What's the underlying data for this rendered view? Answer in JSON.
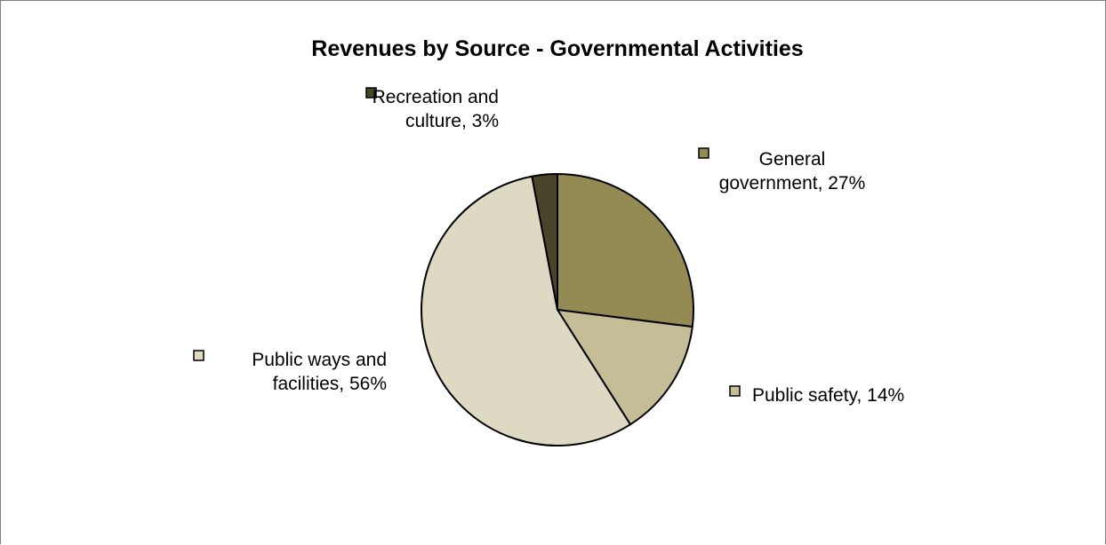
{
  "chart_data": {
    "type": "pie",
    "title": "Revenues by Source - Governmental Activities",
    "slices": [
      {
        "name": "General government",
        "label_lines": [
          "General",
          "government, 27%"
        ],
        "value": 27,
        "color": "#948a54"
      },
      {
        "name": "Public safety",
        "label_lines": [
          "Public safety, 14%"
        ],
        "value": 14,
        "color": "#c4bd97"
      },
      {
        "name": "Public ways and facilities",
        "label_lines": [
          "Public ways and",
          "facilities, 56%"
        ],
        "value": 56,
        "color": "#ddd9c3"
      },
      {
        "name": "Recreation and culture",
        "label_lines": [
          "Recreation and",
          "culture, 3%"
        ],
        "value": 3,
        "color": "#4a452a"
      }
    ],
    "start_angle_deg": 0,
    "direction": "clockwise",
    "legend": "none",
    "data_labels": "category name and percentage with legend key"
  }
}
